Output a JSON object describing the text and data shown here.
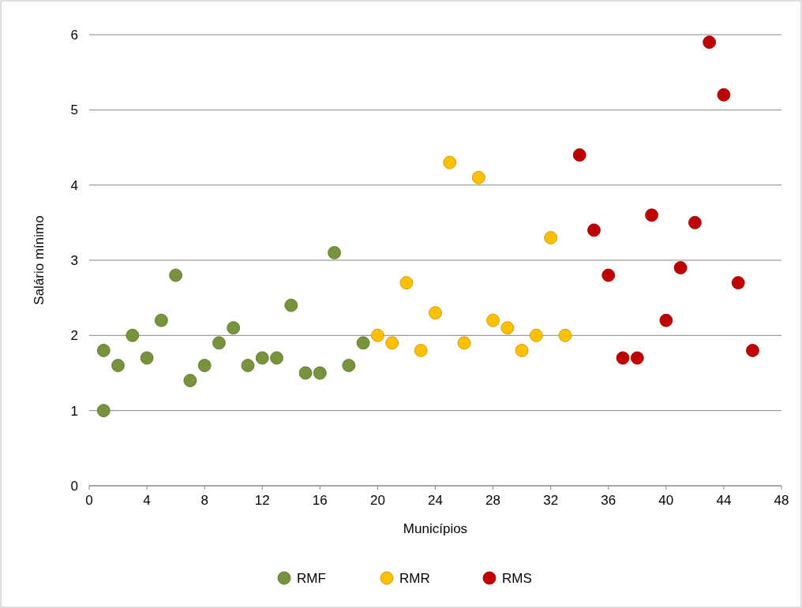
{
  "chart_data": {
    "type": "scatter",
    "xlabel": "Municípios",
    "ylabel": "Salário mínimo",
    "xlim": [
      0,
      48
    ],
    "xticks": [
      0,
      4,
      8,
      12,
      16,
      20,
      24,
      28,
      32,
      36,
      40,
      44,
      48
    ],
    "ylim": [
      0,
      6
    ],
    "yticks": [
      0,
      1,
      2,
      3,
      4,
      5,
      6
    ],
    "grid": "y",
    "legend": "bottom",
    "marker": "circle",
    "series": [
      {
        "name": "RMF",
        "color": "#77933c",
        "x": [
          1,
          1,
          2,
          3,
          4,
          5,
          6,
          7,
          8,
          9,
          10,
          11,
          12,
          13,
          14,
          15,
          16,
          17,
          18,
          19
        ],
        "values": [
          1.8,
          1.0,
          1.6,
          2.0,
          1.7,
          2.2,
          2.8,
          1.4,
          1.6,
          1.9,
          2.1,
          1.6,
          1.7,
          1.7,
          2.4,
          1.5,
          1.5,
          3.1,
          1.6,
          1.9
        ]
      },
      {
        "name": "RMR",
        "color": "#ffc000",
        "x": [
          20,
          21,
          22,
          23,
          24,
          25,
          26,
          27,
          28,
          29,
          30,
          31,
          32,
          33
        ],
        "values": [
          2.0,
          1.9,
          2.7,
          1.8,
          2.3,
          4.3,
          1.9,
          4.1,
          2.2,
          2.1,
          1.8,
          2.0,
          3.3,
          2.0
        ]
      },
      {
        "name": "RMS",
        "color": "#c00000",
        "x": [
          34,
          35,
          36,
          37,
          38,
          39,
          40,
          41,
          42,
          43,
          44,
          45,
          46
        ],
        "values": [
          4.4,
          3.4,
          2.8,
          1.7,
          1.7,
          3.6,
          2.2,
          2.9,
          3.5,
          5.9,
          5.2,
          2.7,
          1.8
        ]
      }
    ]
  }
}
